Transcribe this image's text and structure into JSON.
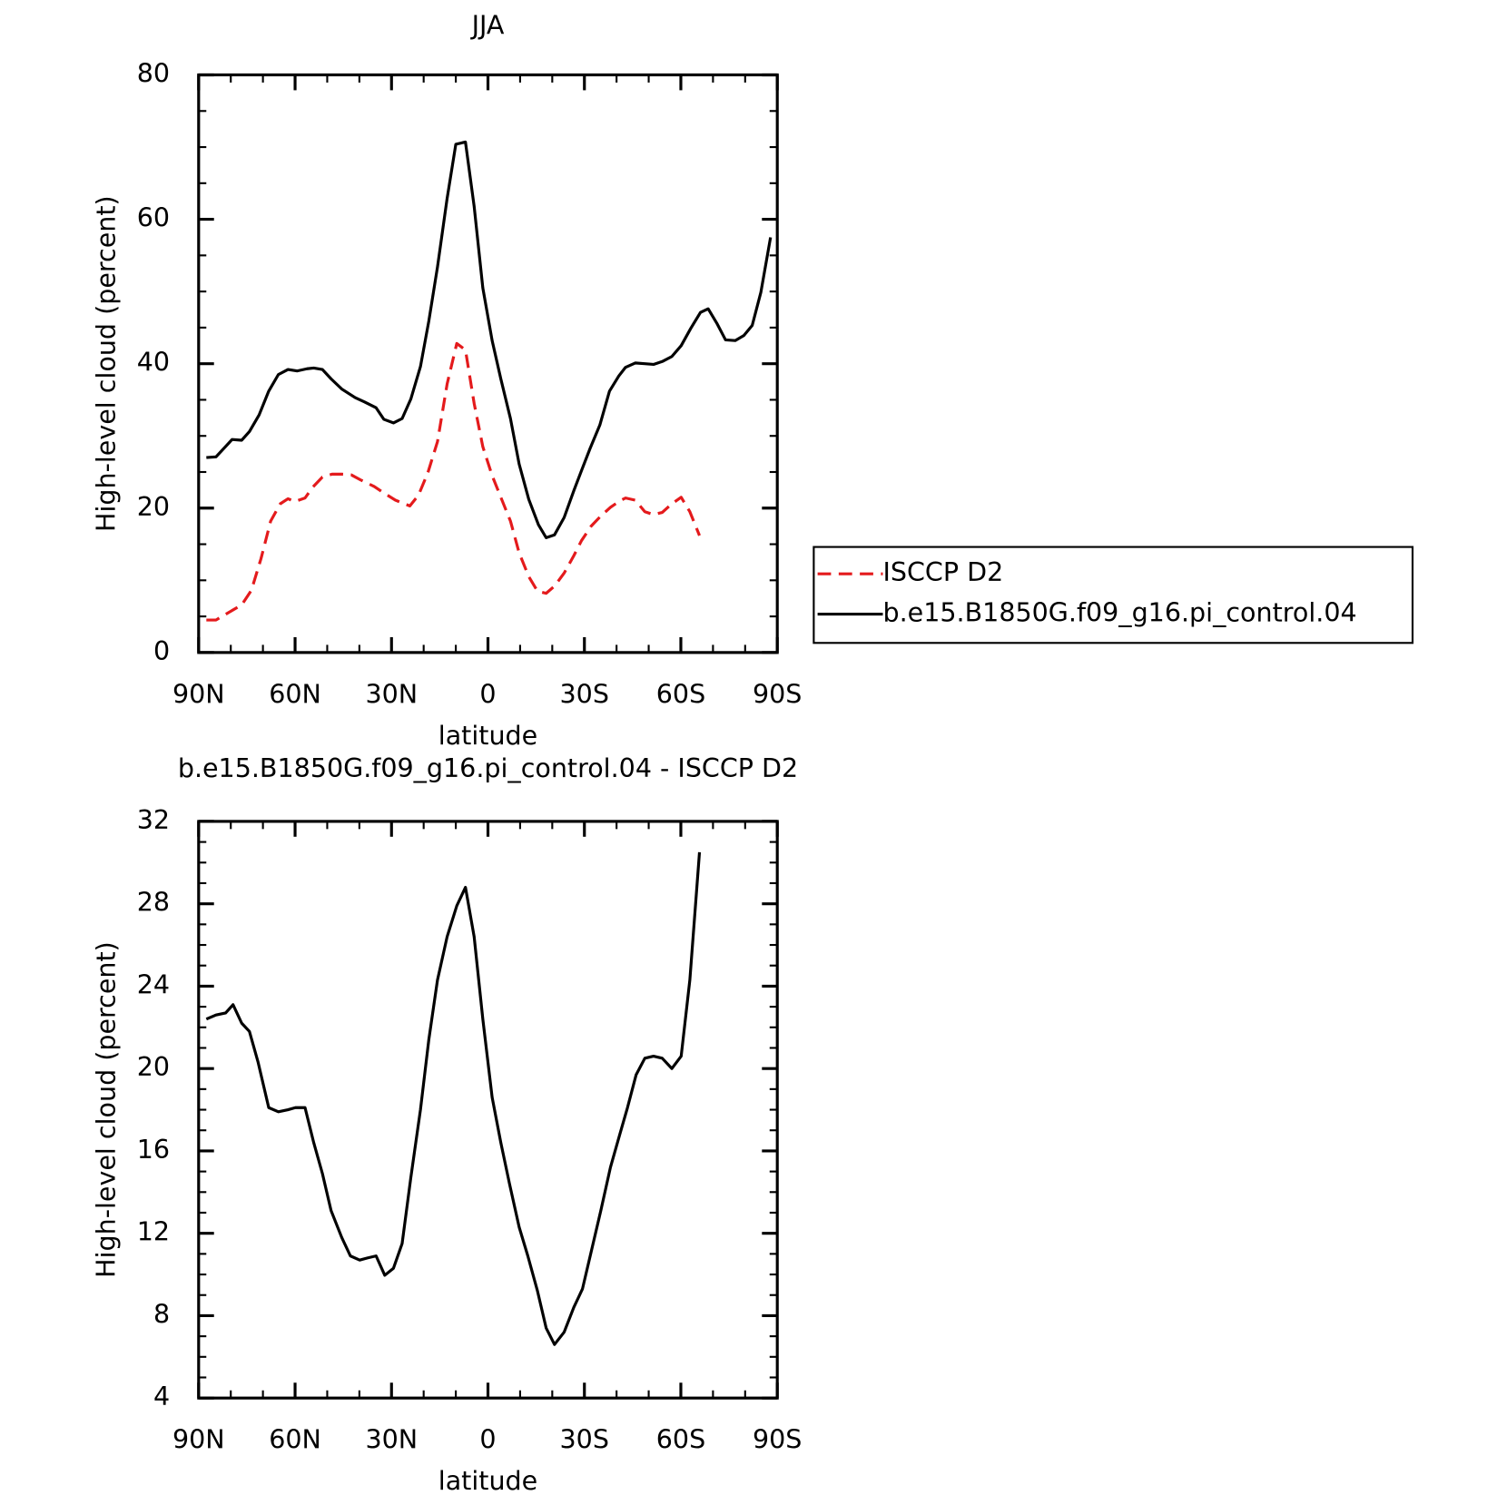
{
  "chart_data": [
    {
      "type": "line",
      "title": "JJA",
      "xlabel": "latitude",
      "ylabel": "High-level cloud (percent)",
      "xlim": [
        90,
        -90
      ],
      "xticks": [
        {
          "value": 90,
          "label": "90N"
        },
        {
          "value": 60,
          "label": "60N"
        },
        {
          "value": 30,
          "label": "30N"
        },
        0,
        {
          "value": -30,
          "label": "30S"
        },
        {
          "value": -60,
          "label": "60S"
        },
        {
          "value": -90,
          "label": "90S"
        }
      ],
      "xminor": 10,
      "ylim": [
        0,
        80
      ],
      "yticks": [
        0,
        20,
        40,
        60,
        80
      ],
      "yminor": 5,
      "legend": "right",
      "series": [
        {
          "name": "ISCCP D2",
          "color": "#e41a1c",
          "dash": true,
          "x": [
            87.6,
            84.6,
            81.6,
            76.6,
            73.6,
            70.6,
            67.6,
            64.6,
            62.2,
            60.1,
            56.9,
            54.5,
            51.5,
            48.5,
            45.5,
            42.5,
            39.6,
            35.4,
            32.4,
            28.8,
            24.3,
            21.6,
            18.7,
            15.7,
            12.7,
            9.7,
            7.0,
            4.3,
            1.6,
            -1.3,
            -4.0,
            -7.0,
            -9.7,
            -12.7,
            -15.4,
            -18.1,
            -20.7,
            -23.7,
            -26.7,
            -29.1,
            -32.1,
            -35.1,
            -38.1,
            -41.0,
            -42.8,
            -45.8,
            -48.8,
            -51.5,
            -54.2,
            -57.2,
            -60.1,
            -62.8,
            -65.8
          ],
          "values": [
            4.5,
            4.5,
            5.3,
            6.6,
            8.6,
            13.0,
            18.2,
            20.6,
            21.3,
            20.9,
            21.4,
            22.9,
            24.3,
            24.7,
            24.7,
            24.6,
            23.9,
            23.0,
            22.1,
            21.1,
            20.3,
            21.8,
            24.9,
            29.2,
            37.2,
            42.8,
            41.9,
            34.5,
            28.5,
            24.5,
            21.5,
            18.2,
            13.8,
            10.5,
            8.5,
            8.2,
            9.2,
            11.0,
            13.4,
            15.5,
            17.5,
            18.9,
            20.1,
            21.0,
            21.4,
            21.1,
            19.5,
            19.1,
            19.4,
            20.6,
            21.5,
            19.5,
            16.2
          ]
        },
        {
          "name": "b.e15.B1850G.f09_g16.pi_control.04",
          "color": "#000000",
          "dash": false,
          "x": [
            87.6,
            84.6,
            79.6,
            76.6,
            74.2,
            71.2,
            68.2,
            65.2,
            62.2,
            59.3,
            56.3,
            54.2,
            51.5,
            48.8,
            45.5,
            41.3,
            38.4,
            34.8,
            32.4,
            29.4,
            26.7,
            24.0,
            21.0,
            18.4,
            15.7,
            12.7,
            10.0,
            7.0,
            4.3,
            1.6,
            -1.3,
            -4.0,
            -7.0,
            -9.7,
            -12.7,
            -15.7,
            -18.1,
            -20.7,
            -23.7,
            -26.7,
            -29.1,
            -31.8,
            -34.8,
            -37.8,
            -40.7,
            -42.8,
            -45.8,
            -48.8,
            -51.5,
            -54.2,
            -57.2,
            -60.1,
            -63.1,
            -66.1,
            -68.5,
            -71.2,
            -73.9,
            -76.9,
            -79.6,
            -82.2,
            -84.9,
            -87.9
          ],
          "values": [
            27.0,
            27.1,
            29.5,
            29.4,
            30.6,
            32.9,
            36.2,
            38.5,
            39.2,
            39.0,
            39.3,
            39.4,
            39.2,
            37.9,
            36.5,
            35.3,
            34.7,
            33.9,
            32.3,
            31.8,
            32.4,
            35.1,
            39.6,
            45.9,
            53.4,
            62.9,
            70.4,
            70.7,
            61.8,
            50.5,
            43.2,
            37.9,
            32.4,
            26.1,
            21.2,
            17.7,
            15.9,
            16.3,
            18.7,
            22.4,
            25.2,
            28.3,
            31.5,
            36.2,
            38.3,
            39.5,
            40.1,
            40.0,
            39.9,
            40.3,
            41.0,
            42.5,
            44.9,
            47.1,
            47.6,
            45.6,
            43.3,
            43.2,
            43.9,
            45.3,
            49.9,
            57.5
          ]
        }
      ]
    },
    {
      "type": "line",
      "title": "b.e15.B1850G.f09_g16.pi_control.04 - ISCCP D2",
      "xlabel": "latitude",
      "ylabel": "High-level cloud (percent)",
      "xlim": [
        90,
        -90
      ],
      "xticks": [
        {
          "value": 90,
          "label": "90N"
        },
        {
          "value": 60,
          "label": "60N"
        },
        {
          "value": 30,
          "label": "30N"
        },
        0,
        {
          "value": -30,
          "label": "30S"
        },
        {
          "value": -60,
          "label": "60S"
        },
        {
          "value": -90,
          "label": "90S"
        }
      ],
      "xminor": 10,
      "ylim": [
        4,
        32
      ],
      "yticks": [
        4,
        8,
        12,
        16,
        20,
        24,
        28,
        32
      ],
      "yminor": 1,
      "series": [
        {
          "color": "#000000",
          "dash": false,
          "x": [
            87.6,
            84.6,
            81.6,
            79.3,
            76.6,
            74.2,
            71.5,
            68.2,
            65.2,
            62.2,
            59.9,
            56.9,
            54.2,
            51.5,
            48.8,
            45.5,
            42.8,
            39.9,
            37.5,
            34.8,
            32.1,
            29.4,
            26.7,
            24.0,
            21.0,
            18.4,
            15.7,
            12.7,
            9.7,
            7.0,
            4.3,
            1.6,
            -1.3,
            -4.0,
            -6.7,
            -9.7,
            -12.4,
            -15.4,
            -18.1,
            -20.7,
            -23.7,
            -26.7,
            -29.4,
            -32.1,
            -35.1,
            -38.1,
            -41.0,
            -43.4,
            -46.1,
            -48.8,
            -51.5,
            -54.2,
            -57.2,
            -60.1,
            -62.8,
            -65.8
          ],
          "values": [
            22.4,
            22.6,
            22.7,
            23.1,
            22.2,
            21.8,
            20.3,
            18.1,
            17.9,
            18.0,
            18.1,
            18.1,
            16.4,
            14.9,
            13.1,
            11.8,
            10.9,
            10.7,
            10.8,
            10.9,
            9.96,
            10.3,
            11.5,
            14.7,
            18.0,
            21.4,
            24.3,
            26.4,
            27.9,
            28.8,
            26.4,
            22.4,
            18.6,
            16.4,
            14.4,
            12.3,
            10.9,
            9.2,
            7.4,
            6.6,
            7.2,
            8.4,
            9.3,
            11.1,
            13.1,
            15.2,
            16.8,
            18.1,
            19.7,
            20.5,
            20.6,
            20.5,
            20.0,
            20.6,
            24.3,
            30.5
          ]
        }
      ]
    }
  ]
}
